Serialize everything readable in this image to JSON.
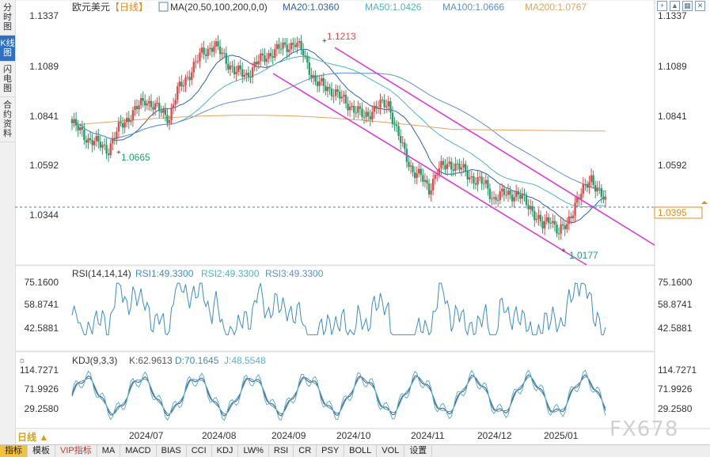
{
  "left_tabs": [
    {
      "label": "分时图",
      "active": false
    },
    {
      "label": "K线图",
      "active": true
    },
    {
      "label": "闪电图",
      "active": false
    },
    {
      "label": "合约资料",
      "active": false
    }
  ],
  "controls": [
    "+",
    "▲",
    "▦",
    "✕"
  ],
  "price_panel": {
    "title": "欧元美元",
    "period_tag": "【日线】",
    "ma_label": "MA(20,50,100,200,0,0)",
    "ma_values": [
      "MA20:1.0360",
      "MA50:1.0426",
      "MA100:1.0666",
      "MA200:1.0767"
    ],
    "y_ticks": [
      "1.1337",
      "1.1089",
      "1.0841",
      "1.0592",
      "1.0344"
    ],
    "current_price": "1.0395",
    "high_label": "1.1213",
    "low_label_1": "1.0665",
    "low_label_2": "1.0177"
  },
  "rsi_panel": {
    "label": "RSI(14,14,14)",
    "values": [
      "RSI1:49.3300",
      "RSI2:49.3300",
      "RSI3:49.3300"
    ],
    "y_ticks": [
      "75.1600",
      "58.8741",
      "42.5881"
    ]
  },
  "kdj_panel": {
    "label": "KDJ(9,3,3)",
    "values": [
      "K:62.9613",
      "D:70.1645",
      "J:48.5548"
    ],
    "y_ticks": [
      "114.7271",
      "71.9926",
      "29.2580"
    ]
  },
  "x_ticks": [
    "2024/07",
    "2024/08",
    "2024/09",
    "2024/10",
    "2024/11",
    "2024/12",
    "2025/01"
  ],
  "period_button": "日线 ▲",
  "bottom_tabs": [
    "指标",
    "模板",
    "VIP指标",
    "MA",
    "MACD",
    "BIAS",
    "CCI",
    "KDJ",
    "LW%",
    "RSI",
    "CR",
    "PSY",
    "BOLL",
    "VOL",
    "设置"
  ],
  "watermark": "FX678",
  "colors": {
    "up": "#e8474a",
    "down": "#22a06b",
    "ma20": "#2b5fb8",
    "ma50": "#4fb6b6",
    "ma100": "#5b8fd6",
    "ma200": "#e8a25a",
    "channel": "#d63bd6",
    "rsi": "#3c8dc8",
    "kdj_k": "#555555",
    "kdj_d": "#3c8dc8",
    "kdj_j": "#55b0d8"
  },
  "chart_data": {
    "type": "candlestick",
    "symbol": "欧元美元",
    "period": "日线",
    "x_ticks": [
      "2024/07",
      "2024/08",
      "2024/09",
      "2024/10",
      "2024/11",
      "2024/12",
      "2025/01"
    ],
    "price_range": [
      1.0177,
      1.1337
    ],
    "closes_anchor": [
      [
        0,
        1.08
      ],
      [
        8,
        1.072
      ],
      [
        14,
        1.069
      ],
      [
        18,
        1.067
      ],
      [
        24,
        1.079
      ],
      [
        30,
        1.085
      ],
      [
        36,
        1.092
      ],
      [
        42,
        1.087
      ],
      [
        48,
        1.083
      ],
      [
        52,
        1.096
      ],
      [
        58,
        1.105
      ],
      [
        64,
        1.115
      ],
      [
        70,
        1.119
      ],
      [
        75,
        1.113
      ],
      [
        80,
        1.106
      ],
      [
        86,
        1.104
      ],
      [
        92,
        1.111
      ],
      [
        98,
        1.115
      ],
      [
        104,
        1.118
      ],
      [
        110,
        1.12
      ],
      [
        114,
        1.115
      ],
      [
        120,
        1.1
      ],
      [
        126,
        1.098
      ],
      [
        132,
        1.093
      ],
      [
        138,
        1.088
      ],
      [
        144,
        1.083
      ],
      [
        150,
        1.088
      ],
      [
        156,
        1.09
      ],
      [
        160,
        1.076
      ],
      [
        164,
        1.065
      ],
      [
        168,
        1.056
      ],
      [
        172,
        1.053
      ],
      [
        176,
        1.047
      ],
      [
        180,
        1.056
      ],
      [
        186,
        1.06
      ],
      [
        192,
        1.057
      ],
      [
        198,
        1.052
      ],
      [
        204,
        1.049
      ],
      [
        208,
        1.042
      ],
      [
        214,
        1.045
      ],
      [
        220,
        1.044
      ],
      [
        226,
        1.038
      ],
      [
        232,
        1.028
      ],
      [
        236,
        1.033
      ],
      [
        240,
        1.025
      ],
      [
        244,
        1.029
      ],
      [
        248,
        1.04
      ],
      [
        252,
        1.046
      ],
      [
        256,
        1.053
      ],
      [
        260,
        1.045
      ],
      [
        263,
        1.04
      ]
    ],
    "ma_series_last": {
      "MA20": 1.036,
      "MA50": 1.0426,
      "MA100": 1.0666,
      "MA200": 1.0767
    },
    "rsi_last": [
      49.33,
      49.33,
      49.33
    ],
    "kdj_last": {
      "K": 62.9613,
      "D": 70.1645,
      "J": 48.5548
    },
    "annotations": [
      {
        "text": "1.1213",
        "type": "high"
      },
      {
        "text": "1.0665",
        "type": "low"
      },
      {
        "text": "1.0177",
        "type": "low"
      },
      {
        "text": "1.0395",
        "type": "last-price"
      }
    ]
  }
}
